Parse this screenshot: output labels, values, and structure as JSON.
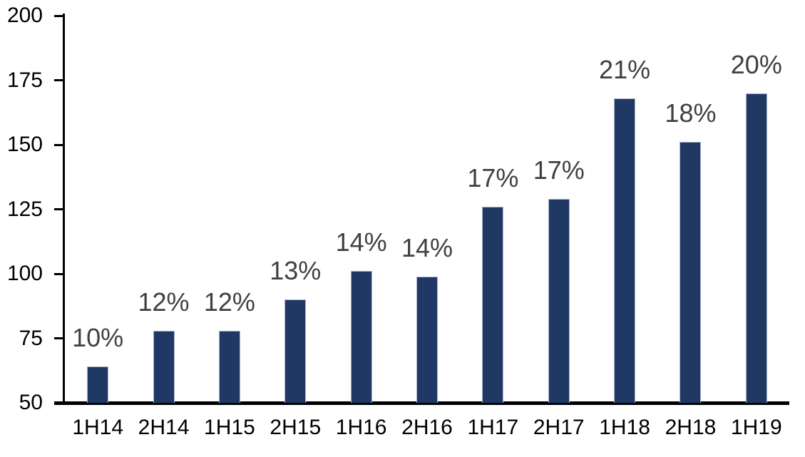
{
  "chart_data": {
    "type": "bar",
    "categories": [
      "1H14",
      "2H14",
      "1H15",
      "2H15",
      "1H16",
      "2H16",
      "1H17",
      "2H17",
      "1H18",
      "2H18",
      "1H19"
    ],
    "values": [
      64,
      78,
      78,
      90,
      101,
      99,
      126,
      129,
      168,
      151,
      170
    ],
    "data_labels": [
      "10%",
      "12%",
      "12%",
      "13%",
      "14%",
      "14%",
      "17%",
      "17%",
      "21%",
      "18%",
      "20%"
    ],
    "title": "",
    "xlabel": "",
    "ylabel": "",
    "ylim": [
      50,
      200
    ],
    "yticks": [
      50,
      75,
      100,
      125,
      150,
      175,
      200
    ],
    "grid": false,
    "legend": false,
    "colors": {
      "bar_fill": "#1f3864",
      "bar_border": "#a9b4c6",
      "data_label": "#404040",
      "axis": "#000000",
      "tick_label": "#000000",
      "background": "#ffffff"
    }
  }
}
